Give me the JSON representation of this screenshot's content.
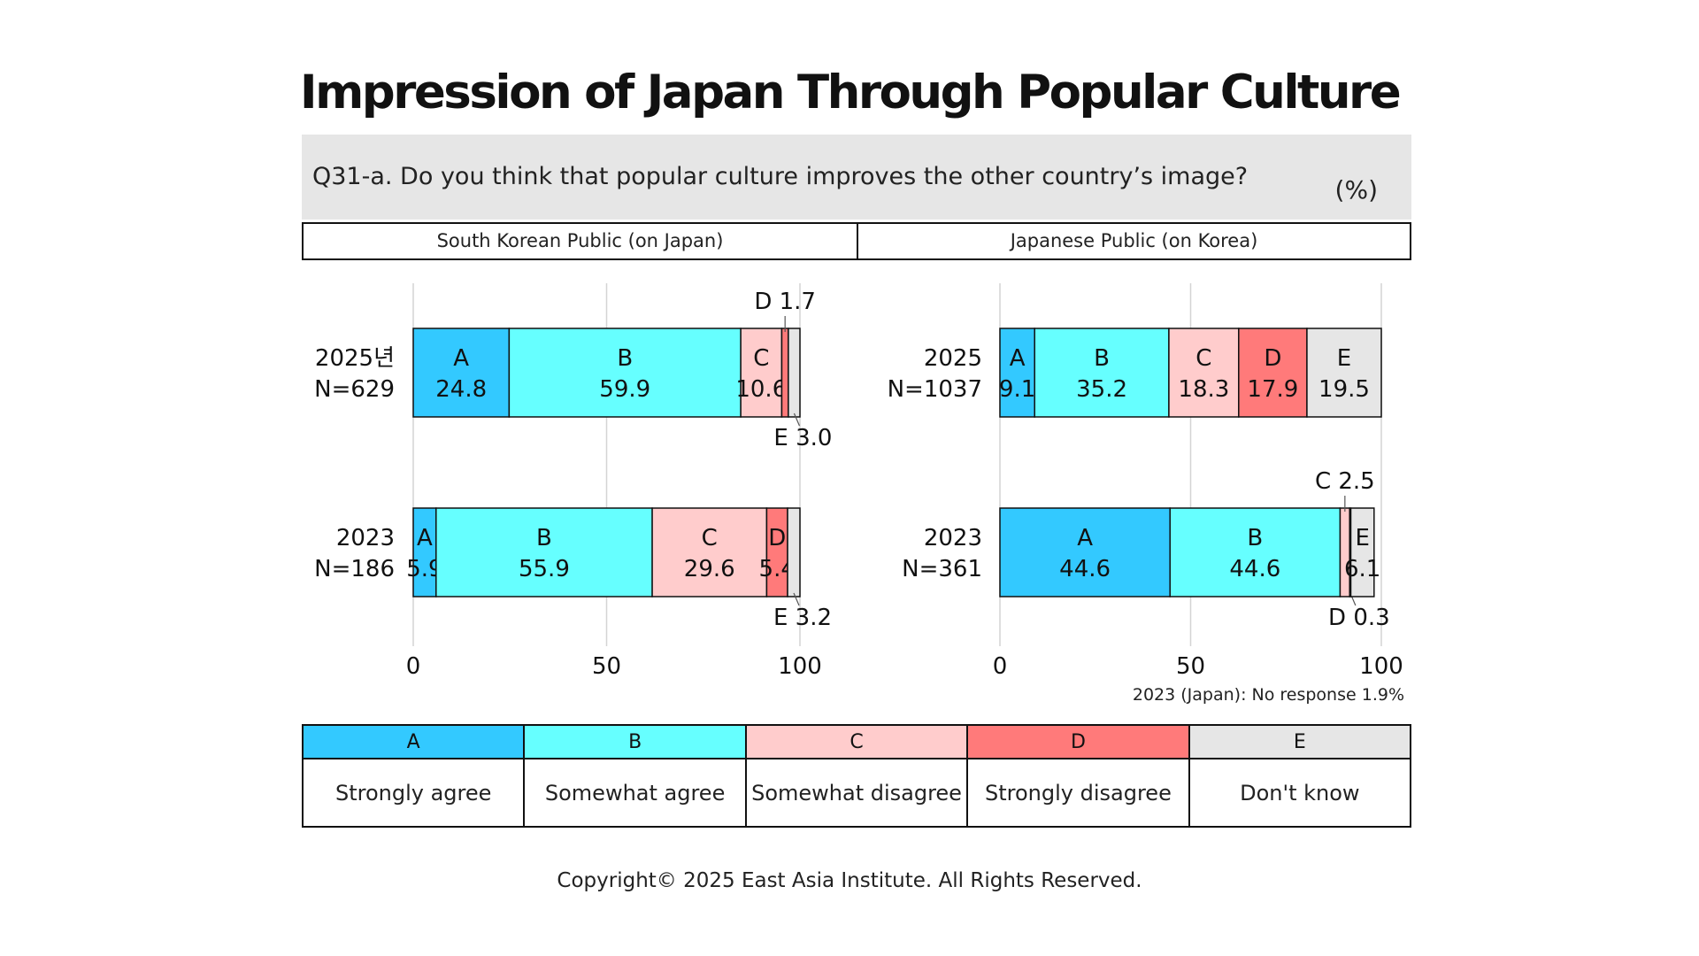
{
  "title": "Impression of Japan Through Popular Culture",
  "question": "Q31-a. Do you think that popular culture improves the other country’s image?",
  "unit": "(%)",
  "note": "2023 (Japan): No response 1.9%",
  "copyright": "Copyright© 2025 East Asia Institute. All Rights Reserved.",
  "colors": {
    "A": "#33c9ff",
    "B": "#66ffff",
    "C": "#ffcccc",
    "D": "#ff7a7a",
    "E": "#e6e6e6"
  },
  "legend": [
    {
      "code": "A",
      "label": "Strongly agree"
    },
    {
      "code": "B",
      "label": "Somewhat agree"
    },
    {
      "code": "C",
      "label": "Somewhat disagree"
    },
    {
      "code": "D",
      "label": "Strongly disagree"
    },
    {
      "code": "E",
      "label": "Don't know"
    }
  ],
  "chart_data": [
    {
      "type": "bar",
      "orientation": "horizontal",
      "stacked": true,
      "panel_title": "South Korean Public (on Japan)",
      "xlim": [
        0,
        100
      ],
      "xticks": [
        0,
        50,
        100
      ],
      "rows": [
        {
          "label": "2025년",
          "n_label": "N=629",
          "values": {
            "A": 24.8,
            "B": 59.9,
            "C": 10.6,
            "D": 1.7,
            "E": 3.0
          }
        },
        {
          "label": "2023",
          "n_label": "N=186",
          "values": {
            "A": 5.9,
            "B": 55.9,
            "C": 29.6,
            "D": 5.4,
            "E": 3.2
          }
        }
      ]
    },
    {
      "type": "bar",
      "orientation": "horizontal",
      "stacked": true,
      "panel_title": "Japanese Public (on Korea)",
      "xlim": [
        0,
        100
      ],
      "xticks": [
        0,
        50,
        100
      ],
      "rows": [
        {
          "label": "2025",
          "n_label": "N=1037",
          "values": {
            "A": 9.1,
            "B": 35.2,
            "C": 18.3,
            "D": 17.9,
            "E": 19.5
          }
        },
        {
          "label": "2023",
          "n_label": "N=361",
          "values": {
            "A": 44.6,
            "B": 44.6,
            "C": 2.5,
            "D": 0.3,
            "E": 6.1
          }
        }
      ]
    }
  ]
}
